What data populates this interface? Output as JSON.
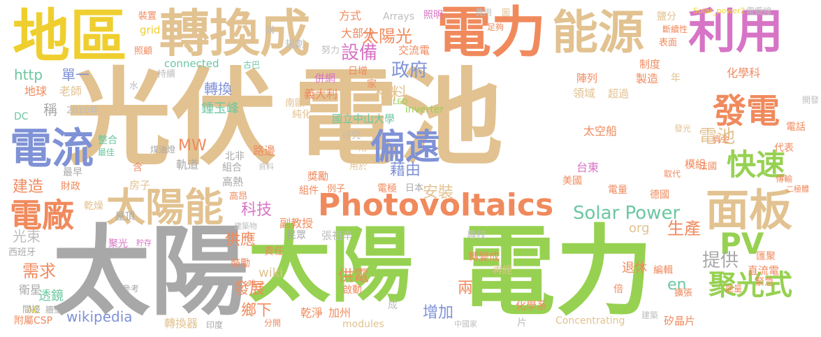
{
  "palette": {
    "tan": "#e2c290",
    "green": "#97d151",
    "grey": "#a8a8a8",
    "orange": "#f08a5d",
    "pink": "#d774c6",
    "yellow": "#efcf2f",
    "teal": "#6bc7a1",
    "blue": "#7f92d6",
    "lightgrey": "#bdbdbd"
  },
  "words": [
    {
      "text": "光伏"
    },
    {
      "text": "電池"
    },
    {
      "text": "太陽"
    },
    {
      "text": "電力"
    },
    {
      "text": "太陽"
    },
    {
      "text": "地區"
    },
    {
      "text": "轉換成"
    },
    {
      "text": "電力"
    },
    {
      "text": "能源"
    },
    {
      "text": "利用"
    },
    {
      "text": "Photovoltaics"
    },
    {
      "text": "太陽能"
    },
    {
      "text": "面板"
    },
    {
      "text": "電流"
    },
    {
      "text": "偏遠"
    },
    {
      "text": "發電"
    },
    {
      "text": "電廠"
    },
    {
      "text": "快速"
    },
    {
      "text": "聚光式"
    },
    {
      "text": "PV"
    },
    {
      "text": "Solar Power"
    },
    {
      "text": "政府"
    },
    {
      "text": "設備"
    },
    {
      "text": "太陽光"
    },
    {
      "text": "材料"
    },
    {
      "text": "藉由"
    },
    {
      "text": "安裝"
    },
    {
      "text": "科技"
    },
    {
      "text": "生產"
    },
    {
      "text": "提供"
    },
    {
      "text": "供應"
    },
    {
      "text": "發展"
    },
    {
      "text": "鄉下"
    },
    {
      "text": "增加"
    },
    {
      "text": "兩"
    },
    {
      "text": "供電"
    },
    {
      "text": "需求"
    },
    {
      "text": "建造"
    },
    {
      "text": "電池"
    },
    {
      "text": "MW"
    },
    {
      "text": "wikipedia"
    },
    {
      "text": "wiki"
    },
    {
      "text": "http"
    },
    {
      "text": "單一"
    },
    {
      "text": "轉換"
    },
    {
      "text": "鍾玉峰"
    },
    {
      "text": "老師"
    },
    {
      "text": "地球"
    },
    {
      "text": "稱"
    },
    {
      "text": "光束"
    },
    {
      "text": "衛星"
    },
    {
      "text": "透鏡"
    },
    {
      "text": "en"
    },
    {
      "text": "org"
    },
    {
      "text": "Concentrating"
    },
    {
      "text": "modules"
    },
    {
      "text": "inverter"
    },
    {
      "text": "connected"
    },
    {
      "text": "grid"
    },
    {
      "text": "Arrays"
    },
    {
      "text": "大部分"
    },
    {
      "text": "方式"
    },
    {
      "text": "照明"
    },
    {
      "text": "交流電"
    },
    {
      "text": "規劃"
    },
    {
      "text": "努力"
    },
    {
      "text": "費用"
    },
    {
      "text": "足夠"
    },
    {
      "text": "圖"
    },
    {
      "text": "鹽分"
    },
    {
      "text": "Solar_power2"
    },
    {
      "text": "電纜線"
    },
    {
      "text": "斷續性"
    },
    {
      "text": "表面"
    },
    {
      "text": "制度"
    },
    {
      "text": "製造"
    },
    {
      "text": "年"
    },
    {
      "text": "化學科"
    },
    {
      "text": "陣列"
    },
    {
      "text": "領域"
    },
    {
      "text": "超過"
    },
    {
      "text": "併網"
    },
    {
      "text": "日增"
    },
    {
      "text": "家"
    },
    {
      "text": "義大利"
    },
    {
      "text": "國立中山大學"
    },
    {
      "text": "南歐"
    },
    {
      "text": "純化"
    },
    {
      "text": "研究"
    },
    {
      "text": "常"
    },
    {
      "text": "用於"
    },
    {
      "text": "北非"
    },
    {
      "text": "組合"
    },
    {
      "text": "路邊"
    },
    {
      "text": "軌道"
    },
    {
      "text": "高熱"
    },
    {
      "text": "高昂"
    },
    {
      "text": "獎勵"
    },
    {
      "text": "組件"
    },
    {
      "text": "例子"
    },
    {
      "text": "電極"
    },
    {
      "text": "日本"
    },
    {
      "text": "副教授"
    },
    {
      "text": "民眾"
    },
    {
      "text": "責任"
    },
    {
      "text": "張祖辛"
    },
    {
      "text": "專校"
    },
    {
      "text": "轉變成"
    },
    {
      "text": "再經"
    },
    {
      "text": "退休"
    },
    {
      "text": "編輯"
    },
    {
      "text": "匯聚"
    },
    {
      "text": "直流電"
    },
    {
      "text": "擴張"
    },
    {
      "text": "倍"
    },
    {
      "text": "能量"
    },
    {
      "text": "緊急"
    },
    {
      "text": "鼓勵"
    },
    {
      "text": "啟動"
    },
    {
      "text": "唯一"
    },
    {
      "text": "化學系"
    },
    {
      "text": "乾淨"
    },
    {
      "text": "加州"
    },
    {
      "text": "分開"
    },
    {
      "text": "成"
    },
    {
      "text": "片"
    },
    {
      "text": "矽晶片"
    },
    {
      "text": "建築"
    },
    {
      "text": "中國家"
    },
    {
      "text": "轉換器"
    },
    {
      "text": "印度"
    },
    {
      "text": "附屬"
    },
    {
      "text": "CSP"
    },
    {
      "text": "AC"
    },
    {
      "text": "間接"
    },
    {
      "text": "牆壁"
    },
    {
      "text": "參考"
    },
    {
      "text": "西班牙"
    },
    {
      "text": "聚光"
    },
    {
      "text": "貯存"
    },
    {
      "text": "建築物"
    },
    {
      "text": "屋頂"
    },
    {
      "text": "房子"
    },
    {
      "text": "乾燥"
    },
    {
      "text": "財政"
    },
    {
      "text": "最早"
    },
    {
      "text": "含"
    },
    {
      "text": "整合"
    },
    {
      "text": "最佳"
    },
    {
      "text": "煤油燈"
    },
    {
      "text": "DC"
    },
    {
      "text": "2010年"
    },
    {
      "text": "水"
    },
    {
      "text": "持續"
    },
    {
      "text": "照顧"
    },
    {
      "text": "裝置"
    },
    {
      "text": "說"
    },
    {
      "text": "古巴"
    },
    {
      "text": "LED"
    },
    {
      "text": "太空船"
    },
    {
      "text": "台東"
    },
    {
      "text": "美國"
    },
    {
      "text": "電量"
    },
    {
      "text": "德國"
    },
    {
      "text": "模組"
    },
    {
      "text": "法國"
    },
    {
      "text": "代表"
    },
    {
      "text": "電話"
    },
    {
      "text": "資金"
    },
    {
      "text": "發光"
    },
    {
      "text": "取代"
    },
    {
      "text": "傳輸"
    },
    {
      "text": "二極體"
    },
    {
      "text": "開發"
    },
    {
      "text": "資料"
    }
  ]
}
